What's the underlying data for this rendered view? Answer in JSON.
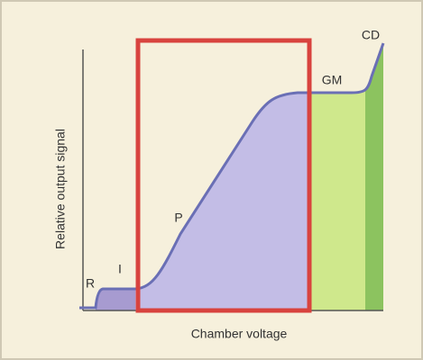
{
  "axes": {
    "x_label": "Chamber voltage",
    "y_label": "Relative output signal"
  },
  "regions": [
    {
      "label": "R"
    },
    {
      "label": "I"
    },
    {
      "label": "P"
    },
    {
      "label": "GM"
    },
    {
      "label": "CD"
    }
  ]
}
